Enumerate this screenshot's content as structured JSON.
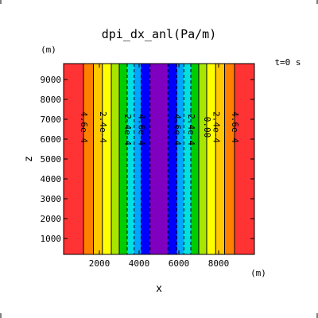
{
  "chart_data": {
    "type": "heatmap",
    "title": "dpi_dx_anl(Pa/m)",
    "time_label": "t=0  s",
    "xlabel": "x",
    "ylabel": "z",
    "x_unit": "(m)",
    "y_unit": "(m)",
    "xlim": [
      200,
      9800
    ],
    "ylim": [
      200,
      9800
    ],
    "x_ticks": [
      2000,
      4000,
      6000,
      8000
    ],
    "x_tick_labels": [
      "2000",
      "4000",
      "6000",
      "8000"
    ],
    "y_ticks": [
      1000,
      2000,
      3000,
      4000,
      5000,
      6000,
      7000,
      8000,
      9000
    ],
    "y_tick_labels": [
      "1000",
      "2000",
      "3000",
      "4000",
      "5000",
      "6000",
      "7000",
      "8000",
      "9000"
    ],
    "color_bands": [
      {
        "x0": 200,
        "x1": 1200,
        "color": "#ff3333"
      },
      {
        "x0": 1200,
        "x1": 1700,
        "color": "#ff8000"
      },
      {
        "x0": 1700,
        "x1": 2150,
        "color": "#ffc800"
      },
      {
        "x0": 2150,
        "x1": 2600,
        "color": "#ffff00"
      },
      {
        "x0": 2600,
        "x1": 3000,
        "color": "#a8e600"
      },
      {
        "x0": 3000,
        "x1": 3400,
        "color": "#00cc00"
      },
      {
        "x0": 3400,
        "x1": 3750,
        "color": "#00e0e0"
      },
      {
        "x0": 3750,
        "x1": 4100,
        "color": "#00a6ff"
      },
      {
        "x0": 4100,
        "x1": 4550,
        "color": "#0000ff"
      },
      {
        "x0": 4550,
        "x1": 5450,
        "color": "#8000c0"
      },
      {
        "x0": 5450,
        "x1": 5900,
        "color": "#0000ff"
      },
      {
        "x0": 5900,
        "x1": 6250,
        "color": "#00a6ff"
      },
      {
        "x0": 6250,
        "x1": 6600,
        "color": "#00e0e0"
      },
      {
        "x0": 6600,
        "x1": 7000,
        "color": "#00cc00"
      },
      {
        "x0": 7000,
        "x1": 7400,
        "color": "#a8e600"
      },
      {
        "x0": 7400,
        "x1": 7850,
        "color": "#ffff00"
      },
      {
        "x0": 7850,
        "x1": 8300,
        "color": "#ffc800"
      },
      {
        "x0": 8300,
        "x1": 8800,
        "color": "#ff8000"
      },
      {
        "x0": 8800,
        "x1": 9800,
        "color": "#ff3333"
      }
    ],
    "contours": [
      {
        "x": 1200,
        "dashed": false
      },
      {
        "x": 1700,
        "dashed": false
      },
      {
        "x": 2150,
        "dashed": false
      },
      {
        "x": 2600,
        "dashed": false
      },
      {
        "x": 3000,
        "dashed": false
      },
      {
        "x": 3400,
        "dashed": true
      },
      {
        "x": 3750,
        "dashed": true
      },
      {
        "x": 4100,
        "dashed": true
      },
      {
        "x": 4550,
        "dashed": true
      },
      {
        "x": 5450,
        "dashed": true
      },
      {
        "x": 5900,
        "dashed": true
      },
      {
        "x": 6250,
        "dashed": true
      },
      {
        "x": 6600,
        "dashed": true
      },
      {
        "x": 7000,
        "dashed": false
      },
      {
        "x": 7400,
        "dashed": false
      },
      {
        "x": 7850,
        "dashed": false
      },
      {
        "x": 8300,
        "dashed": false
      },
      {
        "x": 8800,
        "dashed": false
      }
    ],
    "contour_labels": [
      {
        "text": "4.6e-4",
        "x": 1200,
        "z": 6600
      },
      {
        "text": "2.4e-4",
        "x": 2150,
        "z": 6600
      },
      {
        "text": "-2.4e-4",
        "x": 3400,
        "z": 6600
      },
      {
        "text": "-4.6e-4",
        "x": 4100,
        "z": 6600
      },
      {
        "text": "-4.6e-4",
        "x": 5900,
        "z": 6600
      },
      {
        "text": "-2.4e-4",
        "x": 6600,
        "z": 6600
      },
      {
        "text": "0.00",
        "x": 7400,
        "z": 6600
      },
      {
        "text": "2.4e-4",
        "x": 7850,
        "z": 6600
      },
      {
        "text": "4.6e-4",
        "x": 8800,
        "z": 6600
      }
    ]
  }
}
